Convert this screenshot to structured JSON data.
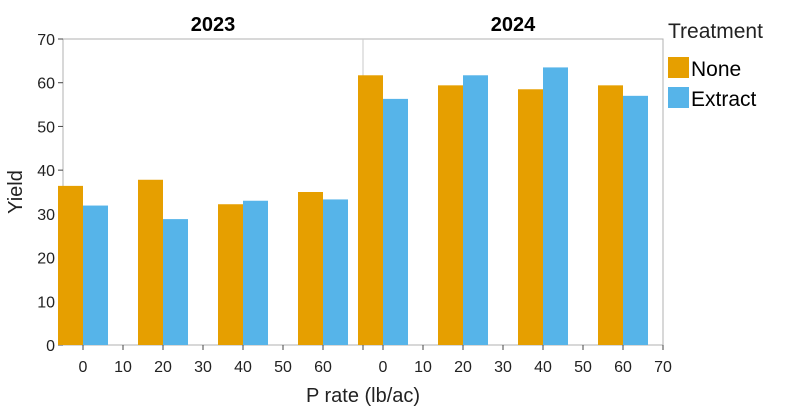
{
  "chart_data": {
    "type": "bar",
    "xlabel": "P rate (lb/ac)",
    "ylabel": "Yield",
    "ylim": [
      0,
      70
    ],
    "yticks": [
      0,
      10,
      20,
      30,
      40,
      50,
      60,
      70
    ],
    "xlim": [
      -5,
      70
    ],
    "xticks": [
      0,
      10,
      20,
      30,
      40,
      50,
      60,
      70
    ],
    "grid": false,
    "legend": {
      "title": "Treatment",
      "position": "right",
      "entries": [
        {
          "name": "None",
          "color": "#E69F00"
        },
        {
          "name": "Extract",
          "color": "#56B4E9"
        }
      ]
    },
    "panels": [
      {
        "title": "2023",
        "categories": [
          0,
          20,
          40,
          60
        ],
        "series": [
          {
            "name": "None",
            "values": [
              36.4,
              37.8,
              32.2,
              35.0
            ]
          },
          {
            "name": "Extract",
            "values": [
              31.9,
              28.8,
              33.0,
              33.3
            ]
          }
        ]
      },
      {
        "title": "2024",
        "categories": [
          0,
          20,
          40,
          60
        ],
        "series": [
          {
            "name": "None",
            "values": [
              61.7,
              59.4,
              58.5,
              59.4
            ]
          },
          {
            "name": "Extract",
            "values": [
              56.3,
              61.7,
              63.5,
              57.0
            ]
          }
        ]
      }
    ]
  }
}
